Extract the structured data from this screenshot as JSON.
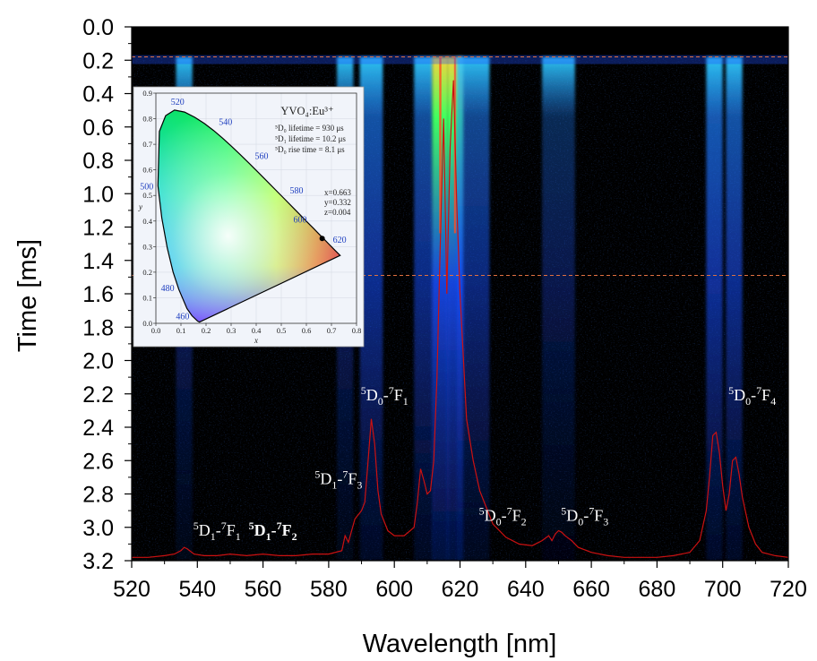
{
  "chart_data": [
    {
      "type": "heatmap",
      "title": "",
      "xlabel": "Wavelength [nm]",
      "ylabel": "Time [ms]",
      "xlim": [
        520,
        720
      ],
      "ylim": [
        0.0,
        3.2
      ],
      "y_inverted": true,
      "x_ticks": [
        520,
        540,
        560,
        580,
        600,
        620,
        640,
        660,
        680,
        700,
        720
      ],
      "y_ticks": [
        "0.0",
        "0.2",
        "0.4",
        "0.6",
        "0.8",
        "1.0",
        "1.2",
        "1.4",
        "1.6",
        "1.8",
        "2.0",
        "2.2",
        "2.4",
        "2.6",
        "2.8",
        "3.0",
        "3.2"
      ],
      "emission_onset_ms": 0.18,
      "emission_bands_nm": [
        {
          "center": 536,
          "width": 2.5,
          "intensity": 0.35
        },
        {
          "center": 585,
          "width": 2.5,
          "intensity": 0.35
        },
        {
          "center": 593,
          "width": 3.5,
          "intensity": 0.6
        },
        {
          "center": 609,
          "width": 3,
          "intensity": 0.55
        },
        {
          "center": 614,
          "width": 2.5,
          "intensity": 1.0
        },
        {
          "center": 618.5,
          "width": 2.5,
          "intensity": 1.0
        },
        {
          "center": 624,
          "width": 5,
          "intensity": 0.5
        },
        {
          "center": 650,
          "width": 5,
          "intensity": 0.25
        },
        {
          "center": 697.5,
          "width": 2.5,
          "intensity": 0.65
        },
        {
          "center": 703.5,
          "width": 2.5,
          "intensity": 0.6
        }
      ],
      "highlight_box": {
        "x": [
          520,
          720
        ],
        "y": [
          0.18,
          1.49
        ],
        "color": "#e07040"
      },
      "spectrum_overlay": {
        "color": "#cc1111",
        "x": [
          520,
          525,
          530,
          533,
          535,
          536,
          537,
          539,
          542,
          546,
          550,
          555,
          560,
          565,
          570,
          575,
          580,
          584,
          585,
          586,
          588,
          590,
          591,
          592,
          593,
          594,
          595,
          596,
          598,
          600,
          603,
          606,
          607,
          608,
          609,
          610,
          611,
          612,
          613,
          614,
          615,
          616,
          617,
          618,
          619,
          620,
          622,
          624,
          626,
          628,
          630,
          634,
          638,
          642,
          645,
          647,
          648,
          649,
          650,
          651,
          652,
          654,
          656,
          660,
          665,
          670,
          675,
          680,
          685,
          690,
          693,
          695,
          696,
          697,
          698,
          699,
          700,
          701,
          702,
          703,
          704,
          705,
          706,
          708,
          710,
          712,
          716,
          720
        ],
        "y": [
          3.18,
          3.18,
          3.17,
          3.16,
          3.14,
          3.12,
          3.13,
          3.16,
          3.17,
          3.17,
          3.16,
          3.17,
          3.16,
          3.17,
          3.17,
          3.16,
          3.16,
          3.14,
          3.05,
          3.09,
          2.95,
          2.9,
          2.85,
          2.6,
          2.35,
          2.5,
          2.78,
          2.92,
          3.02,
          3.05,
          3.05,
          3.0,
          2.85,
          2.65,
          2.72,
          2.8,
          2.78,
          2.6,
          2.1,
          1.3,
          0.55,
          1.6,
          0.72,
          0.32,
          1.05,
          1.6,
          2.35,
          2.6,
          2.78,
          2.88,
          2.98,
          3.06,
          3.1,
          3.11,
          3.08,
          3.05,
          3.08,
          3.04,
          3.02,
          3.03,
          3.05,
          3.08,
          3.12,
          3.15,
          3.17,
          3.18,
          3.18,
          3.18,
          3.17,
          3.15,
          3.08,
          2.9,
          2.7,
          2.45,
          2.43,
          2.55,
          2.75,
          2.9,
          2.8,
          2.6,
          2.58,
          2.68,
          2.82,
          3.0,
          3.1,
          3.15,
          3.17,
          3.18
        ]
      },
      "annotations": [
        {
          "state": "5",
          "level": "D",
          "sub": "1",
          "sep": "-",
          "state2": "7",
          "level2": "F",
          "sub2": "1",
          "x": 546,
          "y": 3.05,
          "bold": false
        },
        {
          "state": "5",
          "level": "D",
          "sub": "1",
          "sep": "-",
          "state2": "7",
          "level2": "F",
          "sub2": "2",
          "x": 563,
          "y": 3.05,
          "bold": true
        },
        {
          "state": "5",
          "level": "D",
          "sub": "1",
          "sep": "-",
          "state2": "7",
          "level2": "F",
          "sub2": "3",
          "x": 583,
          "y": 2.74,
          "bold": false
        },
        {
          "state": "5",
          "level": "D",
          "sub": "0",
          "sep": "-",
          "state2": "7",
          "level2": "F",
          "sub2": "1",
          "x": 597,
          "y": 2.24,
          "bold": false
        },
        {
          "state": "5",
          "level": "D",
          "sub": "0",
          "sep": "-",
          "state2": "7",
          "level2": "F",
          "sub2": "2",
          "x": 633,
          "y": 2.96,
          "bold": false
        },
        {
          "state": "5",
          "level": "D",
          "sub": "0",
          "sep": "-",
          "state2": "7",
          "level2": "F",
          "sub2": "3",
          "x": 658,
          "y": 2.96,
          "bold": false
        },
        {
          "state": "5",
          "level": "D",
          "sub": "0",
          "sep": "-",
          "state2": "7",
          "level2": "F",
          "sub2": "4",
          "x": 709,
          "y": 2.24,
          "bold": false
        }
      ]
    },
    {
      "type": "scatter",
      "title": "YVO₄:Eu³⁺",
      "subtitle_lines": [
        "⁵D₀ lifetime = 930 μs",
        "⁵D₁ lifetime = 10.2 μs",
        "⁵D₀ rise time = 8.1 μs"
      ],
      "point_label_lines": [
        "x=0.663",
        "y=0.332",
        "z=0.004"
      ],
      "xlabel": "x",
      "ylabel": "y",
      "xlim": [
        0.0,
        0.8
      ],
      "ylim": [
        0.0,
        0.9
      ],
      "x_ticks": [
        "0.0",
        "0.1",
        "0.2",
        "0.3",
        "0.4",
        "0.5",
        "0.6",
        "0.7",
        "0.8"
      ],
      "y_ticks": [
        "0.0",
        "0.1",
        "0.2",
        "0.3",
        "0.4",
        "0.5",
        "0.6",
        "0.7",
        "0.8",
        "0.9"
      ],
      "grid": true,
      "points": [
        {
          "x": 0.663,
          "y": 0.332
        }
      ],
      "locus_wavelength_labels": [
        "460",
        "480",
        "500",
        "520",
        "540",
        "560",
        "580",
        "600",
        "620"
      ]
    }
  ]
}
